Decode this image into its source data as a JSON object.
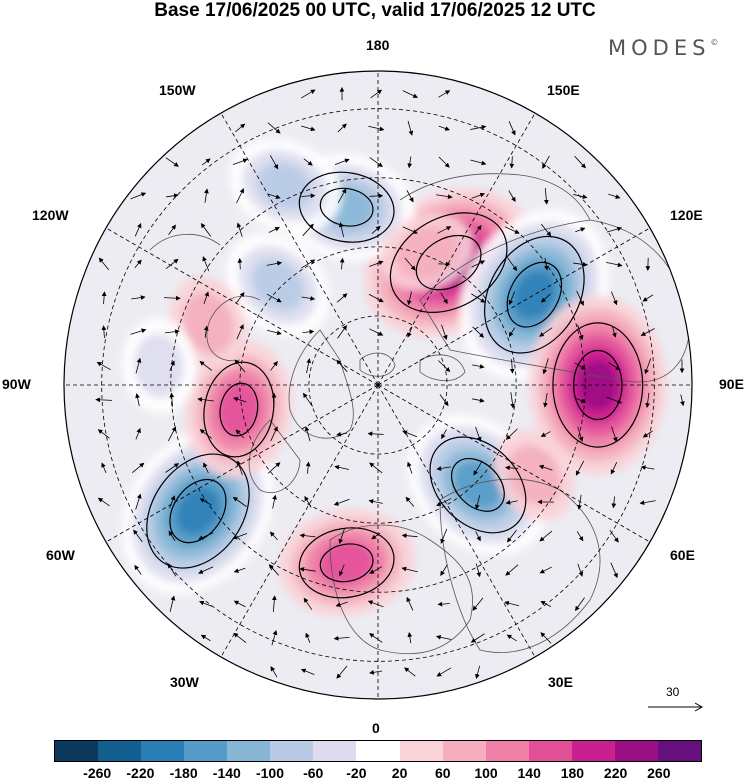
{
  "title": "Base 17/06/2025 00 UTC, valid 17/06/2025 12 UTC",
  "brand": "MODES",
  "brand_mark": "©",
  "longitude_labels": {
    "top": "180",
    "bottom": "0",
    "left": "90W",
    "right": "90E",
    "upper_left": "150W",
    "upper_right": "150E",
    "mid_upper_left": "120W",
    "mid_upper_right": "120E",
    "mid_lower_left": "60W",
    "mid_lower_right": "60E",
    "lower_left": "30W",
    "lower_right": "30E"
  },
  "vector_reference": "30",
  "colorbar": {
    "colors": [
      "#0d3a5c",
      "#135f8f",
      "#2b7fb7",
      "#559cc8",
      "#88b7d6",
      "#b7cbe4",
      "#dcdcee",
      "#ffffff",
      "#f9d3d8",
      "#f4aebd",
      "#ee7fa6",
      "#e2509a",
      "#c91f8f",
      "#9b0f84",
      "#65107d"
    ],
    "ticks": [
      "-260",
      "-220",
      "-180",
      "-140",
      "-100",
      "-60",
      "-20",
      "20",
      "60",
      "100",
      "140",
      "180",
      "220",
      "260"
    ]
  },
  "anomaly_centers": [
    {
      "lon": "150E",
      "sign": "positive",
      "level": 220
    },
    {
      "lon": "120E",
      "sign": "negative",
      "level": -220
    },
    {
      "lon": "90E",
      "sign": "positive",
      "level": 220
    },
    {
      "lon": "45E",
      "sign": "negative",
      "level": -180
    },
    {
      "lon": "10W",
      "sign": "positive",
      "level": 140
    },
    {
      "lon": "55W",
      "sign": "negative",
      "level": -220
    },
    {
      "lon": "80W",
      "sign": "positive",
      "level": 140
    },
    {
      "lon": "170W",
      "sign": "negative",
      "level": -140
    },
    {
      "lon": "155W",
      "sign": "negative",
      "level": -100
    },
    {
      "lon": "135W",
      "sign": "negative",
      "level": -100
    },
    {
      "lon": "110W",
      "sign": "positive",
      "level": 60
    },
    {
      "lon": "95W",
      "sign": "negative",
      "level": -60
    },
    {
      "lon": "160E",
      "sign": "positive",
      "level": 60
    },
    {
      "lon": "60E",
      "sign": "positive",
      "level": 60
    }
  ]
}
